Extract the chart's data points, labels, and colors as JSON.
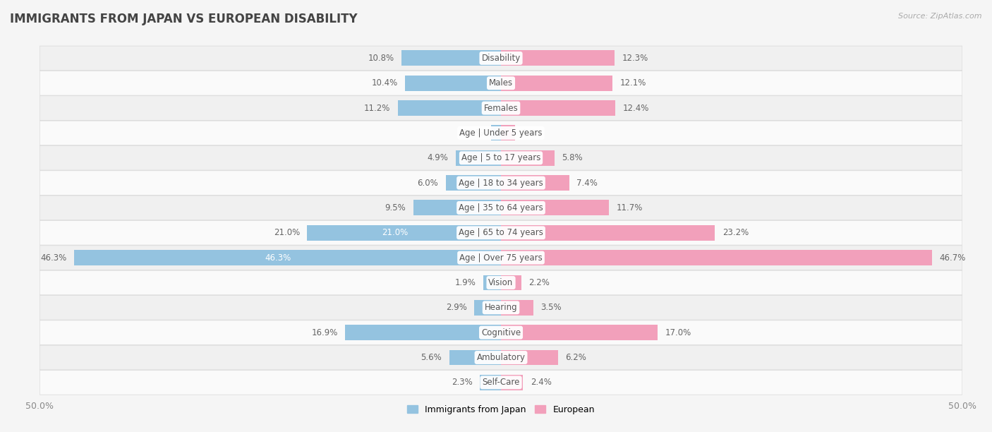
{
  "title": "IMMIGRANTS FROM JAPAN VS EUROPEAN DISABILITY",
  "source": "Source: ZipAtlas.com",
  "categories": [
    "Disability",
    "Males",
    "Females",
    "Age | Under 5 years",
    "Age | 5 to 17 years",
    "Age | 18 to 34 years",
    "Age | 35 to 64 years",
    "Age | 65 to 74 years",
    "Age | Over 75 years",
    "Vision",
    "Hearing",
    "Cognitive",
    "Ambulatory",
    "Self-Care"
  ],
  "japan_values": [
    10.8,
    10.4,
    11.2,
    1.1,
    4.9,
    6.0,
    9.5,
    21.0,
    46.3,
    1.9,
    2.9,
    16.9,
    5.6,
    2.3
  ],
  "european_values": [
    12.3,
    12.1,
    12.4,
    1.5,
    5.8,
    7.4,
    11.7,
    23.2,
    46.7,
    2.2,
    3.5,
    17.0,
    6.2,
    2.4
  ],
  "japan_color": "#94C3E0",
  "european_color": "#F2A0BB",
  "japan_label": "Immigrants from Japan",
  "european_label": "European",
  "axis_max": 50.0,
  "row_color_even": "#f0f0f0",
  "row_color_odd": "#fafafa",
  "background_color": "#f5f5f5",
  "title_fontsize": 12,
  "label_fontsize": 8.5,
  "value_fontsize": 8.5,
  "axis_label_fontsize": 9
}
